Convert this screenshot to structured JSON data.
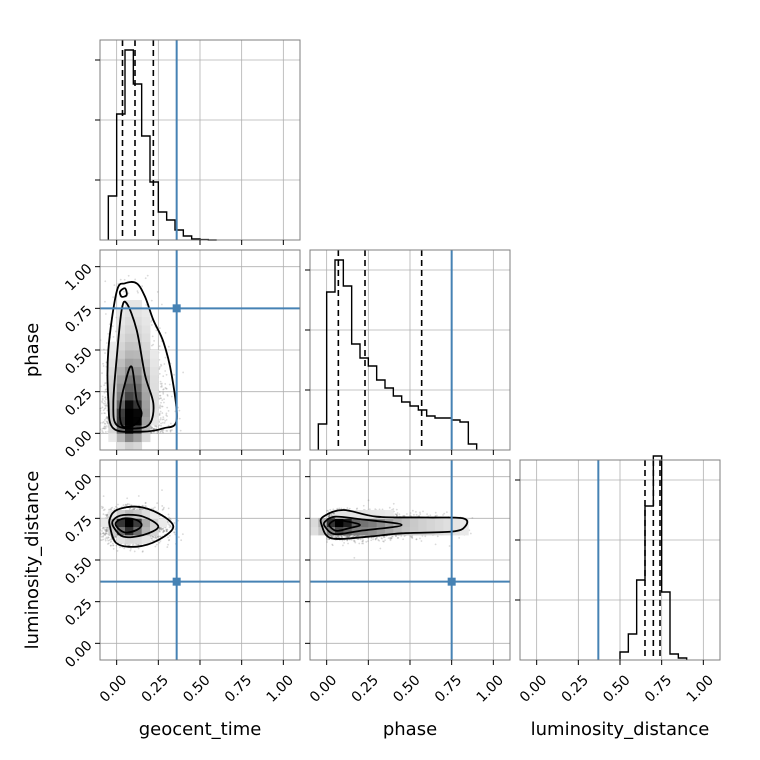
{
  "chart_data": {
    "type": "corner",
    "parameters": [
      "geocent_time",
      "phase",
      "luminosity_distance"
    ],
    "axis_range": [
      -0.1,
      1.1
    ],
    "tick_values": [
      0.0,
      0.25,
      0.5,
      0.75,
      1.0
    ],
    "tick_labels": [
      "0.00",
      "0.25",
      "0.50",
      "0.75",
      "1.00"
    ],
    "truths": {
      "geocent_time": 0.36,
      "phase": 0.75,
      "luminosity_distance": 0.37
    },
    "truth_color": "#4682b4",
    "grid": true,
    "histograms": [
      {
        "parameter": "geocent_time",
        "bin_edges": [
          -0.05,
          0.0,
          0.05,
          0.1,
          0.15,
          0.2,
          0.25,
          0.3,
          0.35,
          0.4,
          0.45,
          0.5,
          0.55,
          0.6
        ],
        "counts": [
          0.22,
          0.63,
          0.95,
          0.78,
          0.52,
          0.29,
          0.14,
          0.1,
          0.05,
          0.02,
          0.005,
          0.002,
          0.0
        ],
        "quantiles": [
          0.035,
          0.11,
          0.22
        ]
      },
      {
        "parameter": "phase",
        "bin_edges": [
          -0.05,
          0.0,
          0.05,
          0.1,
          0.15,
          0.2,
          0.25,
          0.3,
          0.35,
          0.4,
          0.45,
          0.5,
          0.55,
          0.6,
          0.65,
          0.7,
          0.75,
          0.8,
          0.85,
          0.9
        ],
        "counts": [
          0.13,
          0.79,
          0.95,
          0.82,
          0.53,
          0.46,
          0.42,
          0.35,
          0.31,
          0.27,
          0.24,
          0.22,
          0.2,
          0.17,
          0.16,
          0.16,
          0.15,
          0.14,
          0.03
        ],
        "quantiles": [
          0.07,
          0.23,
          0.57
        ]
      },
      {
        "parameter": "luminosity_distance",
        "bin_edges": [
          0.5,
          0.55,
          0.6,
          0.65,
          0.7,
          0.75,
          0.8,
          0.85,
          0.9
        ],
        "counts": [
          0.04,
          0.13,
          0.4,
          0.77,
          1.02,
          0.34,
          0.03,
          0.01
        ],
        "quantiles": [
          0.65,
          0.7,
          0.74
        ]
      }
    ],
    "density_panels": [
      {
        "x": "geocent_time",
        "y": "phase",
        "peak": [
          0.08,
          0.08
        ],
        "contours": [
          {
            "level": "inner",
            "points": [
              [
                0.03,
                0.05
              ],
              [
                0.07,
                0.04
              ],
              [
                0.12,
                0.06
              ],
              [
                0.15,
                0.12
              ],
              [
                0.12,
                0.2
              ],
              [
                0.09,
                0.4
              ],
              [
                0.05,
                0.3
              ],
              [
                0.02,
                0.15
              ]
            ]
          },
          {
            "level": "middle",
            "points": [
              [
                0.0,
                0.05
              ],
              [
                0.12,
                0.03
              ],
              [
                0.2,
                0.06
              ],
              [
                0.22,
                0.18
              ],
              [
                0.17,
                0.35
              ],
              [
                0.12,
                0.62
              ],
              [
                0.06,
                0.78
              ],
              [
                0.03,
                0.74
              ],
              [
                0.0,
                0.45
              ],
              [
                -0.02,
                0.18
              ]
            ]
          },
          {
            "level": "outer",
            "points": [
              [
                -0.02,
                0.03
              ],
              [
                0.15,
                0.01
              ],
              [
                0.28,
                0.03
              ],
              [
                0.36,
                0.08
              ],
              [
                0.33,
                0.35
              ],
              [
                0.28,
                0.55
              ],
              [
                0.22,
                0.68
              ],
              [
                0.17,
                0.82
              ],
              [
                0.12,
                0.9
              ],
              [
                0.05,
                0.9
              ],
              [
                0.0,
                0.85
              ],
              [
                -0.05,
                0.5
              ],
              [
                -0.05,
                0.2
              ]
            ]
          },
          {
            "level": "island",
            "points": [
              [
                0.02,
                0.85
              ],
              [
                0.05,
                0.87
              ],
              [
                0.06,
                0.83
              ],
              [
                0.03,
                0.82
              ]
            ]
          }
        ]
      },
      {
        "x": "geocent_time",
        "y": "luminosity_distance",
        "peak": [
          0.08,
          0.71
        ],
        "contours": [
          {
            "level": "inner",
            "points": [
              [
                0.0,
                0.7
              ],
              [
                0.05,
                0.665
              ],
              [
                0.12,
                0.68
              ],
              [
                0.15,
                0.71
              ],
              [
                0.12,
                0.74
              ],
              [
                0.05,
                0.75
              ],
              [
                0.0,
                0.73
              ]
            ]
          },
          {
            "level": "middle",
            "points": [
              [
                -0.02,
                0.7
              ],
              [
                0.04,
                0.64
              ],
              [
                0.16,
                0.65
              ],
              [
                0.25,
                0.7
              ],
              [
                0.16,
                0.76
              ],
              [
                0.04,
                0.77
              ],
              [
                -0.02,
                0.74
              ]
            ]
          },
          {
            "level": "outer",
            "points": [
              [
                -0.04,
                0.7
              ],
              [
                0.0,
                0.6
              ],
              [
                0.12,
                0.58
              ],
              [
                0.25,
                0.62
              ],
              [
                0.34,
                0.7
              ],
              [
                0.25,
                0.78
              ],
              [
                0.12,
                0.82
              ],
              [
                0.0,
                0.8
              ],
              [
                -0.04,
                0.75
              ]
            ]
          }
        ]
      },
      {
        "x": "phase",
        "y": "luminosity_distance",
        "peak": [
          0.08,
          0.71
        ],
        "contours": [
          {
            "level": "inner",
            "points": [
              [
                0.02,
                0.7
              ],
              [
                0.06,
                0.675
              ],
              [
                0.13,
                0.69
              ],
              [
                0.2,
                0.71
              ],
              [
                0.13,
                0.73
              ],
              [
                0.06,
                0.74
              ],
              [
                0.02,
                0.72
              ]
            ]
          },
          {
            "level": "middle",
            "points": [
              [
                -0.01,
                0.7
              ],
              [
                0.05,
                0.655
              ],
              [
                0.2,
                0.675
              ],
              [
                0.45,
                0.71
              ],
              [
                0.2,
                0.745
              ],
              [
                0.05,
                0.76
              ],
              [
                -0.01,
                0.73
              ]
            ]
          },
          {
            "level": "outer",
            "points": [
              [
                -0.03,
                0.71
              ],
              [
                0.03,
                0.63
              ],
              [
                0.25,
                0.64
              ],
              [
                0.45,
                0.66
              ],
              [
                0.75,
                0.67
              ],
              [
                0.83,
                0.7
              ],
              [
                0.82,
                0.75
              ],
              [
                0.6,
                0.755
              ],
              [
                0.3,
                0.76
              ],
              [
                0.1,
                0.8
              ],
              [
                -0.02,
                0.76
              ]
            ]
          }
        ]
      }
    ]
  }
}
